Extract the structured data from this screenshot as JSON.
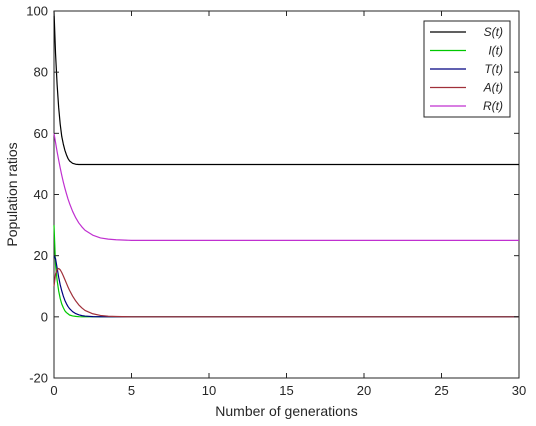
{
  "chart_data": {
    "type": "line",
    "title": "",
    "xlabel": "Number of generations",
    "ylabel": "Population ratios",
    "xlim": [
      0,
      30
    ],
    "ylim": [
      -20,
      100
    ],
    "xticks": [
      0,
      5,
      10,
      15,
      20,
      25,
      30
    ],
    "yticks": [
      -20,
      0,
      20,
      40,
      60,
      80,
      100
    ],
    "xtick_labels": [
      "0",
      "5",
      "10",
      "15",
      "20",
      "25",
      "30"
    ],
    "ytick_labels": [
      "-20",
      "0",
      "20",
      "40",
      "60",
      "80",
      "100"
    ],
    "grid": false,
    "legend_position": "top-right",
    "x": [
      0,
      0.1,
      0.2,
      0.3,
      0.4,
      0.5,
      0.6,
      0.7,
      0.8,
      0.9,
      1.0,
      1.2,
      1.4,
      1.6,
      1.8,
      2.0,
      2.5,
      3.0,
      3.5,
      4.0,
      5,
      6,
      8,
      10,
      15,
      20,
      25,
      30
    ],
    "series": [
      {
        "name": "S(t)",
        "color": "#000000",
        "values": [
          100,
          86,
          76,
          68.5,
          63,
          59,
          56.5,
          54.5,
          53,
          51.8,
          51,
          50.2,
          49.9,
          49.8,
          49.8,
          49.8,
          49.8,
          49.8,
          49.8,
          49.8,
          49.8,
          49.8,
          49.8,
          49.8,
          49.8,
          49.8,
          49.8,
          49.8
        ]
      },
      {
        "name": "I(t)",
        "color": "#00c800",
        "values": [
          30,
          17,
          12,
          8.5,
          6,
          4.2,
          3,
          2,
          1.4,
          1,
          0.6,
          0.3,
          0.15,
          0.05,
          0,
          0,
          0,
          0,
          0,
          0,
          0,
          0,
          0,
          0,
          0,
          0,
          0,
          0
        ]
      },
      {
        "name": "T(t)",
        "color": "#000080",
        "values": [
          20,
          19,
          16,
          13,
          10.5,
          8.5,
          6.8,
          5.4,
          4.3,
          3.4,
          2.7,
          1.7,
          1.05,
          0.65,
          0.4,
          0.25,
          0.08,
          0.02,
          0,
          0,
          0,
          0,
          0,
          0,
          0,
          0,
          0,
          0
        ]
      },
      {
        "name": "A(t)",
        "color": "#a0303a",
        "values": [
          10,
          14,
          15.5,
          15.8,
          15.4,
          14.5,
          13.4,
          12.2,
          11,
          9.8,
          8.7,
          6.8,
          5.2,
          3.9,
          2.9,
          2.1,
          1,
          0.45,
          0.2,
          0.1,
          0,
          0,
          0,
          0,
          0,
          0,
          0,
          0
        ]
      },
      {
        "name": "R(t)",
        "color": "#c030d0",
        "values": [
          60,
          57,
          54,
          51.3,
          48.7,
          46.3,
          44.1,
          42.1,
          40.3,
          38.6,
          37.1,
          34.5,
          32.4,
          30.7,
          29.4,
          28.3,
          26.7,
          25.8,
          25.4,
          25.2,
          25,
          25,
          25,
          25,
          25,
          25,
          25,
          25
        ]
      }
    ]
  }
}
